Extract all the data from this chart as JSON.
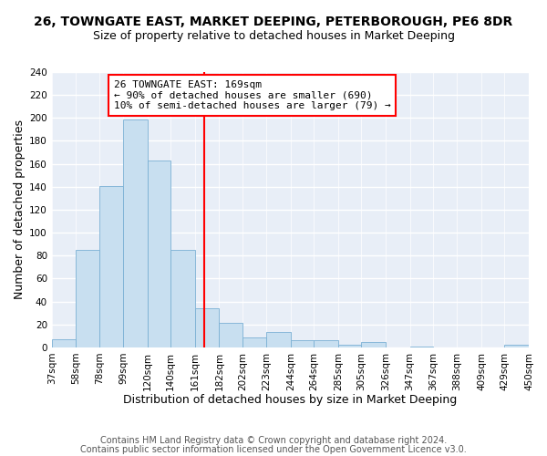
{
  "title": "26, TOWNGATE EAST, MARKET DEEPING, PETERBOROUGH, PE6 8DR",
  "subtitle": "Size of property relative to detached houses in Market Deeping",
  "xlabel": "Distribution of detached houses by size in Market Deeping",
  "ylabel": "Number of detached properties",
  "bin_labels": [
    "37sqm",
    "58sqm",
    "78sqm",
    "99sqm",
    "120sqm",
    "140sqm",
    "161sqm",
    "182sqm",
    "202sqm",
    "223sqm",
    "244sqm",
    "264sqm",
    "285sqm",
    "305sqm",
    "326sqm",
    "347sqm",
    "367sqm",
    "388sqm",
    "409sqm",
    "429sqm",
    "450sqm"
  ],
  "bar_values": [
    7,
    85,
    141,
    199,
    163,
    85,
    34,
    21,
    9,
    13,
    6,
    6,
    2,
    5,
    0,
    1,
    0,
    0,
    0,
    2
  ],
  "bin_edges": [
    37,
    58,
    78,
    99,
    120,
    140,
    161,
    182,
    202,
    223,
    244,
    264,
    285,
    305,
    326,
    347,
    367,
    388,
    409,
    429,
    450
  ],
  "bar_color": "#c8dff0",
  "bar_edge_color": "#7ab0d4",
  "vline_x": 169,
  "vline_color": "red",
  "annotation_title": "26 TOWNGATE EAST: 169sqm",
  "annotation_line1": "← 90% of detached houses are smaller (690)",
  "annotation_line2": "10% of semi-detached houses are larger (79) →",
  "ylim": [
    0,
    240
  ],
  "yticks": [
    0,
    20,
    40,
    60,
    80,
    100,
    120,
    140,
    160,
    180,
    200,
    220,
    240
  ],
  "footer1": "Contains HM Land Registry data © Crown copyright and database right 2024.",
  "footer2": "Contains public sector information licensed under the Open Government Licence v3.0.",
  "background_color": "#e8eef7",
  "grid_color": "white",
  "title_fontsize": 10,
  "subtitle_fontsize": 9,
  "axis_label_fontsize": 9,
  "tick_fontsize": 7.5,
  "annotation_fontsize": 8,
  "footer_fontsize": 7
}
